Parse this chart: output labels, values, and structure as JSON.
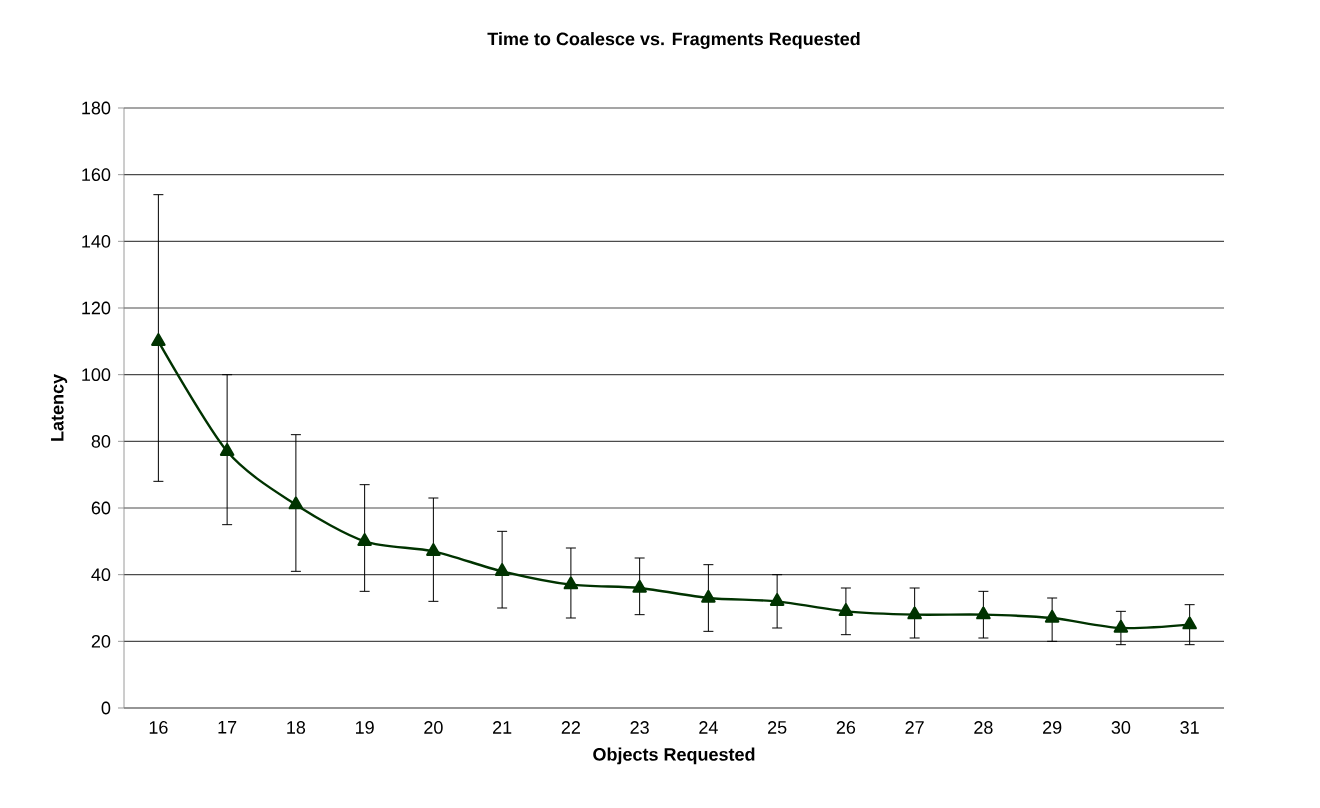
{
  "chart_data": {
    "type": "line",
    "title": "Time to Coalesce vs. Fragments Requested",
    "xlabel": "Objects Requested",
    "ylabel": "Latency",
    "categories": [
      "16",
      "17",
      "18",
      "19",
      "20",
      "21",
      "22",
      "23",
      "24",
      "25",
      "26",
      "27",
      "28",
      "29",
      "30",
      "31"
    ],
    "series": [
      {
        "color": "#003300",
        "values": [
          110,
          77,
          61,
          50,
          47,
          41,
          37,
          36,
          33,
          32,
          29,
          28,
          28,
          27,
          24,
          25
        ],
        "errors": [
          [
            68,
            154
          ],
          [
            55,
            100
          ],
          [
            41,
            82
          ],
          [
            35,
            67
          ],
          [
            32,
            63
          ],
          [
            30,
            53
          ],
          [
            27,
            48
          ],
          [
            28,
            45
          ],
          [
            23,
            43
          ],
          [
            24,
            40
          ],
          [
            22,
            36
          ],
          [
            21,
            36
          ],
          [
            21,
            35
          ],
          [
            20,
            33
          ],
          [
            19,
            29
          ],
          [
            19,
            31
          ]
        ]
      }
    ],
    "ylim": [
      0,
      180
    ],
    "yticks": [
      0,
      20,
      40,
      60,
      80,
      100,
      120,
      140,
      160,
      180
    ],
    "grid": "y",
    "marker": "triangle",
    "line_style": "solid"
  }
}
